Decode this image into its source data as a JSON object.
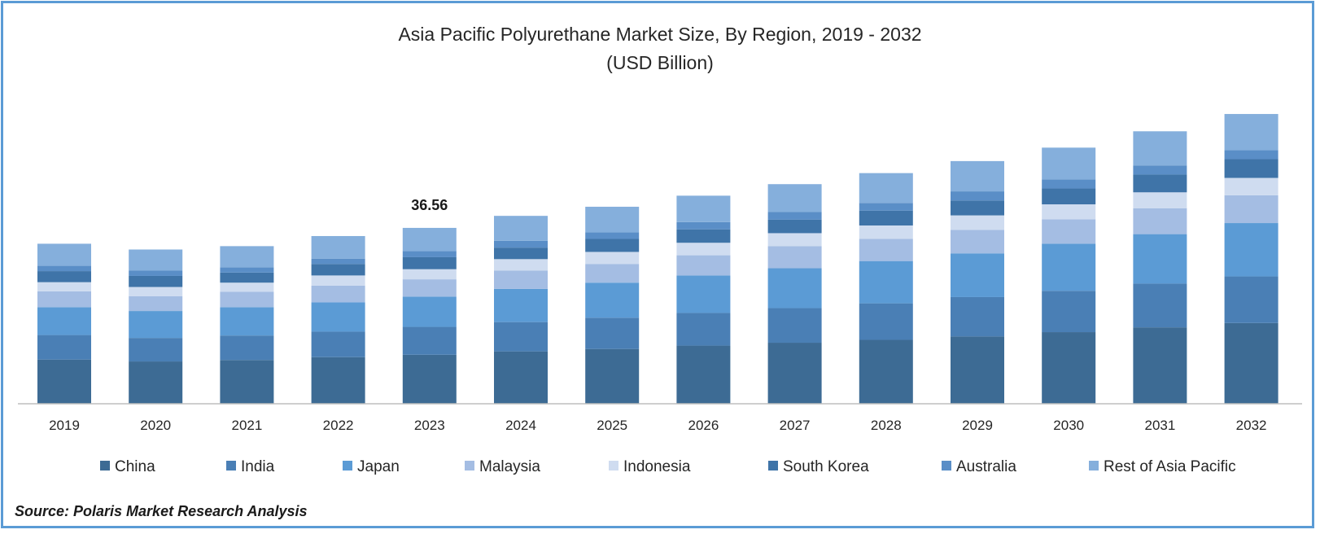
{
  "chart_data": {
    "type": "bar",
    "stacked": true,
    "title": "Asia Pacific Polyurethane Market Size, By Region, 2019 - 2032",
    "subtitle": "(USD Billion)",
    "categories": [
      "2019",
      "2020",
      "2021",
      "2022",
      "2023",
      "2024",
      "2025",
      "2026",
      "2027",
      "2028",
      "2029",
      "2030",
      "2031",
      "2032"
    ],
    "series": [
      {
        "name": "China",
        "color": "#3d6b94",
        "values": [
          9.2,
          8.8,
          9.1,
          9.7,
          10.2,
          10.9,
          11.4,
          12.1,
          12.7,
          13.3,
          14.0,
          14.9,
          15.9,
          16.8
        ]
      },
      {
        "name": "India",
        "color": "#4a7fb5",
        "values": [
          5.1,
          4.9,
          5.1,
          5.3,
          5.8,
          6.1,
          6.5,
          6.8,
          7.2,
          7.6,
          8.2,
          8.6,
          9.1,
          9.7
        ]
      },
      {
        "name": "Japan",
        "color": "#5b9bd5",
        "values": [
          5.8,
          5.6,
          5.9,
          6.1,
          6.3,
          6.9,
          7.3,
          7.8,
          8.3,
          8.8,
          9.1,
          9.8,
          10.3,
          11.1
        ]
      },
      {
        "name": "Malaysia",
        "color": "#a4bde3",
        "values": [
          3.3,
          3.1,
          3.2,
          3.5,
          3.6,
          3.8,
          3.9,
          4.2,
          4.6,
          4.6,
          4.9,
          5.1,
          5.4,
          5.8
        ]
      },
      {
        "name": "Indonesia",
        "color": "#cfdcf0",
        "values": [
          1.9,
          1.9,
          1.9,
          2.1,
          2.1,
          2.4,
          2.5,
          2.6,
          2.7,
          2.8,
          3.0,
          3.1,
          3.3,
          3.6
        ]
      },
      {
        "name": "South Korea",
        "color": "#3f74a8",
        "values": [
          2.3,
          2.3,
          2.1,
          2.4,
          2.5,
          2.4,
          2.7,
          2.8,
          2.8,
          3.1,
          3.1,
          3.3,
          3.7,
          3.9
        ]
      },
      {
        "name": "Australia",
        "color": "#5a8ec7",
        "values": [
          1.1,
          1.1,
          1.1,
          1.1,
          1.3,
          1.4,
          1.4,
          1.5,
          1.6,
          1.6,
          1.9,
          1.9,
          1.9,
          1.9
        ]
      },
      {
        "name": "Rest of Asia Pacific",
        "color": "#85afdc",
        "values": [
          4.6,
          4.4,
          4.4,
          4.7,
          4.8,
          5.2,
          5.3,
          5.5,
          5.8,
          6.2,
          6.3,
          6.6,
          7.1,
          7.5
        ]
      }
    ],
    "data_labels": [
      {
        "category": "2023",
        "text": "36.56"
      }
    ],
    "ylim": [
      0,
      62
    ],
    "grid": false,
    "legend_position": "bottom"
  },
  "source": "Source: Polaris Market Research Analysis"
}
